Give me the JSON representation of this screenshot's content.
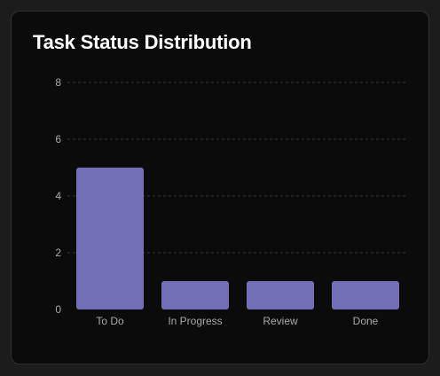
{
  "card": {
    "title": "Task Status Distribution"
  },
  "colors": {
    "bar": "#7370b8",
    "grid": "#333333",
    "tick_text": "#a8a8a8",
    "card_bg": "#0b0b0b",
    "page_bg": "#1c1c1c"
  },
  "chart_data": {
    "type": "bar",
    "title": "Task Status Distribution",
    "categories": [
      "To Do",
      "In Progress",
      "Review",
      "Done"
    ],
    "values": [
      5,
      1,
      1,
      1
    ],
    "xlabel": "",
    "ylabel": "",
    "ylim": [
      0,
      8
    ],
    "yticks": [
      "0",
      "2",
      "4",
      "6",
      "8"
    ],
    "grid": true,
    "grid_style": "dashed-horizontal",
    "legend": "none"
  }
}
